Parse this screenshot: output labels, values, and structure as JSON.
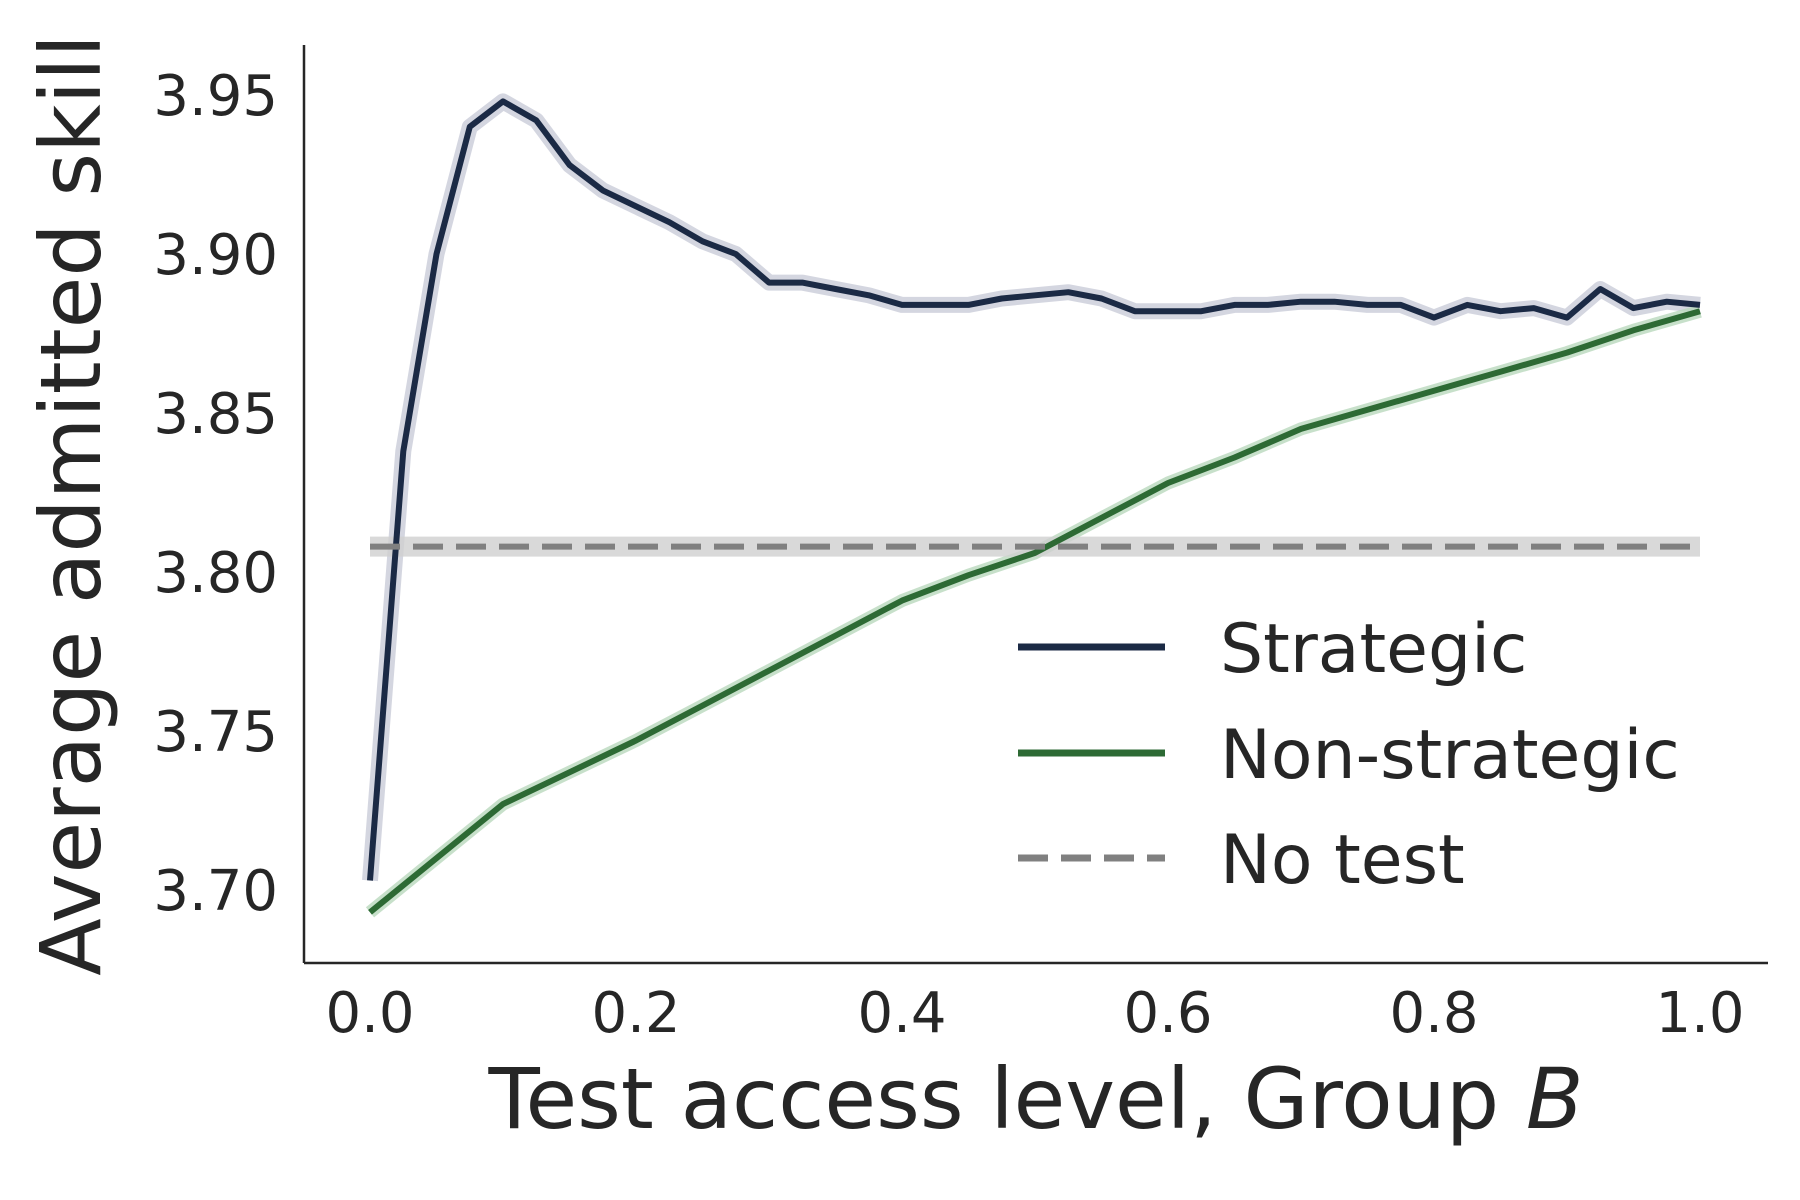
{
  "chart_data": {
    "type": "line",
    "xlabel_prefix": "Test access level, Group ",
    "xlabel_italic": "B",
    "ylabel": "Average admitted skill",
    "xlim": [
      -0.05,
      1.05
    ],
    "ylim": [
      3.675,
      3.965
    ],
    "xticks": [
      0.0,
      0.2,
      0.4,
      0.6,
      0.8,
      1.0
    ],
    "xtick_labels": [
      "0.0",
      "0.2",
      "0.4",
      "0.6",
      "0.8",
      "1.0"
    ],
    "yticks": [
      3.7,
      3.75,
      3.8,
      3.85,
      3.9,
      3.95
    ],
    "ytick_labels": [
      "3.70",
      "3.75",
      "3.80",
      "3.85",
      "3.90",
      "3.95"
    ],
    "grid": false,
    "legend_position": "lower-right",
    "series": [
      {
        "name": "Strategic",
        "color": "#1b2a45",
        "style": "solid",
        "x": [
          0.0,
          0.025,
          0.05,
          0.075,
          0.1,
          0.125,
          0.15,
          0.175,
          0.2,
          0.225,
          0.25,
          0.275,
          0.3,
          0.325,
          0.35,
          0.375,
          0.4,
          0.425,
          0.45,
          0.475,
          0.5,
          0.525,
          0.55,
          0.575,
          0.6,
          0.625,
          0.65,
          0.675,
          0.7,
          0.725,
          0.75,
          0.775,
          0.8,
          0.825,
          0.85,
          0.875,
          0.9,
          0.925,
          0.95,
          0.975,
          1.0
        ],
        "values": [
          3.703,
          3.838,
          3.9,
          3.94,
          3.948,
          3.942,
          3.928,
          3.92,
          3.915,
          3.91,
          3.904,
          3.9,
          3.891,
          3.891,
          3.889,
          3.887,
          3.884,
          3.884,
          3.884,
          3.886,
          3.887,
          3.888,
          3.886,
          3.882,
          3.882,
          3.882,
          3.884,
          3.884,
          3.885,
          3.885,
          3.884,
          3.884,
          3.88,
          3.884,
          3.882,
          3.883,
          3.88,
          3.889,
          3.883,
          3.885,
          3.884
        ]
      },
      {
        "name": "Non-strategic",
        "color": "#2d6a34",
        "style": "solid",
        "x": [
          0.0,
          0.05,
          0.1,
          0.15,
          0.2,
          0.25,
          0.3,
          0.35,
          0.4,
          0.45,
          0.5,
          0.55,
          0.6,
          0.65,
          0.7,
          0.75,
          0.8,
          0.85,
          0.9,
          0.95,
          1.0
        ],
        "values": [
          3.693,
          3.71,
          3.727,
          3.737,
          3.747,
          3.758,
          3.769,
          3.78,
          3.791,
          3.799,
          3.806,
          3.817,
          3.828,
          3.836,
          3.845,
          3.851,
          3.857,
          3.863,
          3.869,
          3.876,
          3.882
        ]
      },
      {
        "name": "No test",
        "color": "#808080",
        "style": "dashed",
        "x": [
          0.0,
          1.0
        ],
        "values": [
          3.808,
          3.808
        ]
      }
    ]
  }
}
